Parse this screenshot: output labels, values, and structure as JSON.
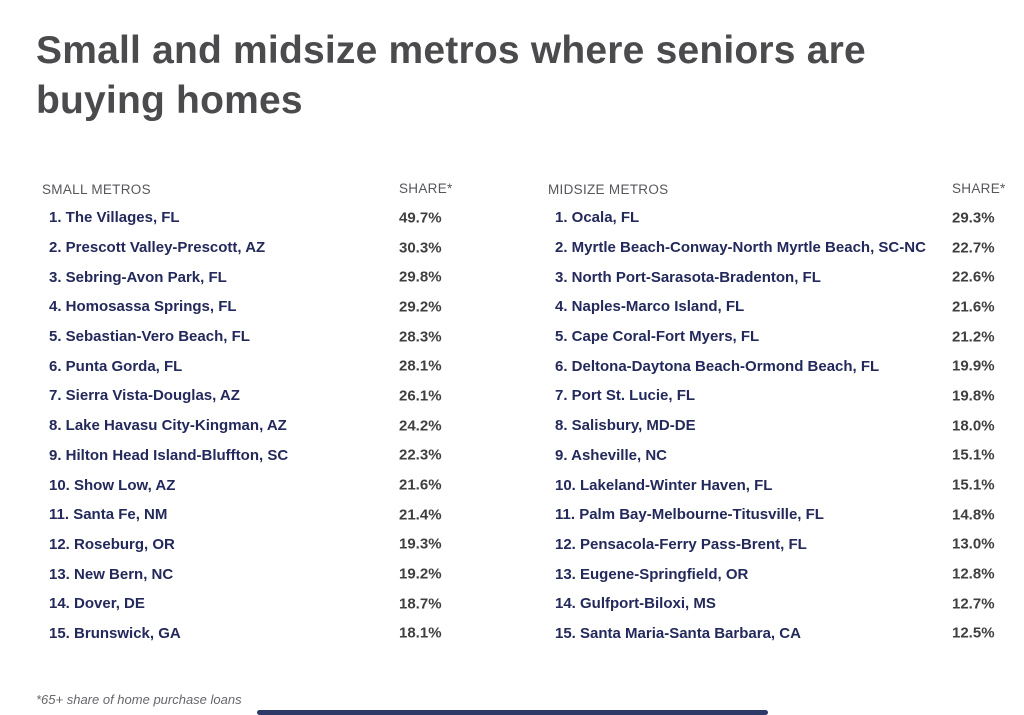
{
  "meta": {
    "title_lines": [
      "Small and midsize metros where seniors are",
      "buying homes"
    ],
    "footnote": "*65+ share of home purchase loans"
  },
  "colors": {
    "title": "#4b4b4e",
    "column_header": "#56575b",
    "metro_name": "#23295a",
    "share_value": "#3f3f41",
    "scrollbar": "#2d3a68",
    "background": "#ffffff"
  },
  "tables": [
    {
      "header_metro": "SMALL METROS",
      "header_share": "SHARE*",
      "rows": [
        {
          "label": "1. The Villages, FL",
          "share": "49.7%"
        },
        {
          "label": "2. Prescott Valley-Prescott, AZ",
          "share": "30.3%"
        },
        {
          "label": "3. Sebring-Avon Park, FL",
          "share": "29.8%"
        },
        {
          "label": "4. Homosassa Springs, FL",
          "share": "29.2%"
        },
        {
          "label": "5. Sebastian-Vero Beach, FL",
          "share": "28.3%"
        },
        {
          "label": "6. Punta Gorda, FL",
          "share": "28.1%"
        },
        {
          "label": "7. Sierra Vista-Douglas, AZ",
          "share": "26.1%"
        },
        {
          "label": "8. Lake Havasu City-Kingman, AZ",
          "share": "24.2%"
        },
        {
          "label": "9. Hilton Head Island-Bluffton, SC",
          "share": "22.3%"
        },
        {
          "label": "10. Show Low, AZ",
          "share": "21.6%"
        },
        {
          "label": "11. Santa Fe, NM",
          "share": "21.4%"
        },
        {
          "label": "12. Roseburg, OR",
          "share": "19.3%"
        },
        {
          "label": "13. New Bern, NC",
          "share": "19.2%"
        },
        {
          "label": "14. Dover, DE",
          "share": "18.7%"
        },
        {
          "label": "15. Brunswick, GA",
          "share": "18.1%"
        }
      ]
    },
    {
      "header_metro": "MIDSIZE METROS",
      "header_share": "SHARE*",
      "rows": [
        {
          "label": "1. Ocala, FL",
          "share": "29.3%"
        },
        {
          "label": "2. Myrtle Beach-Conway-North Myrtle Beach, SC-NC",
          "share": "22.7%"
        },
        {
          "label": "3. North Port-Sarasota-Bradenton, FL",
          "share": "22.6%"
        },
        {
          "label": "4. Naples-Marco Island, FL",
          "share": "21.6%"
        },
        {
          "label": "5. Cape Coral-Fort Myers, FL",
          "share": "21.2%"
        },
        {
          "label": "6. Deltona-Daytona Beach-Ormond Beach, FL",
          "share": "19.9%"
        },
        {
          "label": "7. Port St. Lucie, FL",
          "share": "19.8%"
        },
        {
          "label": "8. Salisbury, MD-DE",
          "share": "18.0%"
        },
        {
          "label": "9. Asheville, NC",
          "share": "15.1%"
        },
        {
          "label": "10. Lakeland-Winter Haven, FL",
          "share": "15.1%"
        },
        {
          "label": "11. Palm Bay-Melbourne-Titusville, FL",
          "share": "14.8%"
        },
        {
          "label": "12. Pensacola-Ferry Pass-Brent, FL",
          "share": "13.0%"
        },
        {
          "label": "13. Eugene-Springfield, OR",
          "share": "12.8%"
        },
        {
          "label": "14. Gulfport-Biloxi, MS",
          "share": "12.7%"
        },
        {
          "label": "15. Santa Maria-Santa Barbara, CA",
          "share": "12.5%"
        }
      ]
    }
  ],
  "chart_data": [
    {
      "type": "table",
      "title": "Small and midsize metros where seniors are buying homes",
      "subtitle": "SMALL METROS",
      "columns": [
        "SMALL METROS",
        "SHARE*"
      ],
      "categories": [
        "The Villages, FL",
        "Prescott Valley-Prescott, AZ",
        "Sebring-Avon Park, FL",
        "Homosassa Springs, FL",
        "Sebastian-Vero Beach, FL",
        "Punta Gorda, FL",
        "Sierra Vista-Douglas, AZ",
        "Lake Havasu City-Kingman, AZ",
        "Hilton Head Island-Bluffton, SC",
        "Show Low, AZ",
        "Santa Fe, NM",
        "Roseburg, OR",
        "New Bern, NC",
        "Dover, DE",
        "Brunswick, GA"
      ],
      "values": [
        49.7,
        30.3,
        29.8,
        29.2,
        28.3,
        28.1,
        26.1,
        24.2,
        22.3,
        21.6,
        21.4,
        19.3,
        19.2,
        18.7,
        18.1
      ],
      "value_unit": "% 65+ share of home purchase loans"
    },
    {
      "type": "table",
      "title": "Small and midsize metros where seniors are buying homes",
      "subtitle": "MIDSIZE METROS",
      "columns": [
        "MIDSIZE METROS",
        "SHARE*"
      ],
      "categories": [
        "Ocala, FL",
        "Myrtle Beach-Conway-North Myrtle Beach, SC-NC",
        "North Port-Sarasota-Bradenton, FL",
        "Naples-Marco Island, FL",
        "Cape Coral-Fort Myers, FL",
        "Deltona-Daytona Beach-Ormond Beach, FL",
        "Port St. Lucie, FL",
        "Salisbury, MD-DE",
        "Asheville, NC",
        "Lakeland-Winter Haven, FL",
        "Palm Bay-Melbourne-Titusville, FL",
        "Pensacola-Ferry Pass-Brent, FL",
        "Eugene-Springfield, OR",
        "Gulfport-Biloxi, MS",
        "Santa Maria-Santa Barbara, CA"
      ],
      "values": [
        29.3,
        22.7,
        22.6,
        21.6,
        21.2,
        19.9,
        19.8,
        18.0,
        15.1,
        15.1,
        14.8,
        13.0,
        12.8,
        12.7,
        12.5
      ],
      "value_unit": "% 65+ share of home purchase loans"
    }
  ]
}
